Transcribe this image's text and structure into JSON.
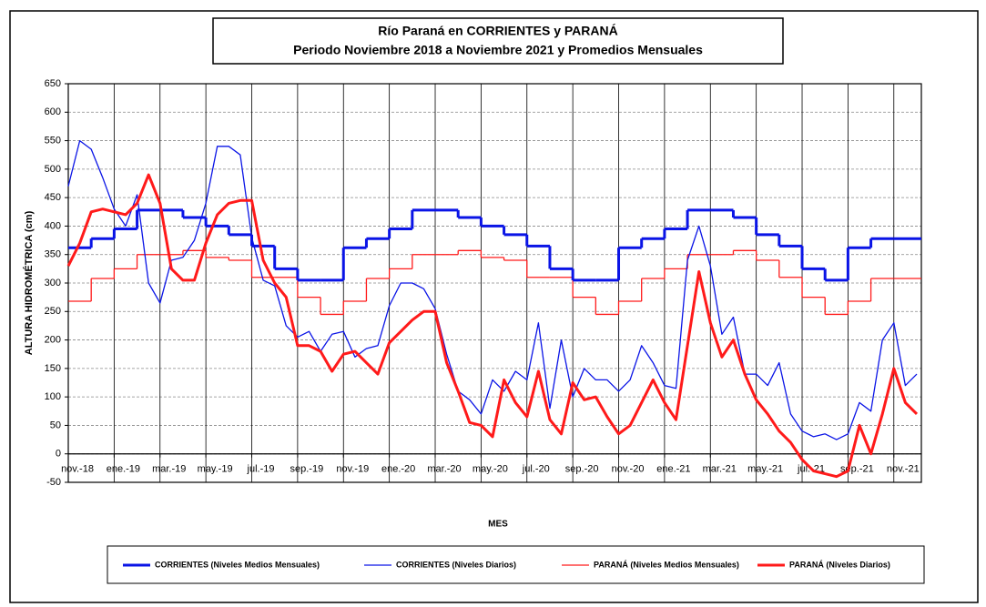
{
  "chart_data": {
    "type": "line",
    "title": "Río Paraná en CORRIENTES y PARANÁ",
    "subtitle": "Periodo Noviembre 2018 a Noviembre 2021 y Promedios Mensuales",
    "y_label": "ALTURA  HIDROMÉTRICA  (cm)",
    "x_label": "MES",
    "xlim": [
      0,
      37.2
    ],
    "ylim": [
      -50,
      650
    ],
    "yticks": [
      -50,
      0,
      50,
      100,
      150,
      200,
      250,
      300,
      350,
      400,
      450,
      500,
      550,
      600,
      650
    ],
    "xticks": [
      {
        "value": 0,
        "label": "nov.-18"
      },
      {
        "value": 2,
        "label": "ene.-19"
      },
      {
        "value": 4,
        "label": "mar.-19"
      },
      {
        "value": 6,
        "label": "may.-19"
      },
      {
        "value": 8,
        "label": "jul.-19"
      },
      {
        "value": 10,
        "label": "sep.-19"
      },
      {
        "value": 12,
        "label": "nov.-19"
      },
      {
        "value": 14,
        "label": "ene.-20"
      },
      {
        "value": 16,
        "label": "mar.-20"
      },
      {
        "value": 18,
        "label": "may.-20"
      },
      {
        "value": 20,
        "label": "jul.-20"
      },
      {
        "value": 22,
        "label": "sep.-20"
      },
      {
        "value": 24,
        "label": "nov.-20"
      },
      {
        "value": 26,
        "label": "ene.-21"
      },
      {
        "value": 28,
        "label": "mar.-21"
      },
      {
        "value": 30,
        "label": "may.-21"
      },
      {
        "value": 32,
        "label": "jul.-21"
      },
      {
        "value": 34,
        "label": "sep.-21"
      },
      {
        "value": 36,
        "label": "nov.-21"
      }
    ],
    "grid": true,
    "series": [
      {
        "name": "CORRIENTES (Niveles Medios Mensuales)",
        "color": "#0a14e6",
        "line_width": 3,
        "style": "step",
        "x": [
          0,
          1,
          2,
          3,
          4,
          5,
          6,
          7,
          8,
          9,
          10,
          11,
          12,
          13,
          14,
          15,
          16,
          17,
          18,
          19,
          20,
          21,
          22,
          23,
          24,
          25,
          26,
          27,
          28,
          29,
          30,
          31,
          32,
          33,
          34,
          35,
          36
        ],
        "values": [
          362,
          378,
          395,
          428,
          428,
          415,
          400,
          385,
          365,
          325,
          305,
          305,
          362,
          378,
          395,
          428,
          428,
          415,
          400,
          385,
          365,
          325,
          305,
          305,
          362,
          378,
          395,
          428,
          428,
          415,
          385,
          365,
          325,
          305,
          362,
          378,
          378
        ]
      },
      {
        "name": "CORRIENTES (Niveles Diarios)",
        "color": "#0a14e6",
        "line_width": 1.3,
        "style": "line",
        "x": [
          0,
          0.5,
          1,
          1.5,
          2,
          2.5,
          3,
          3.5,
          4,
          4.5,
          5,
          5.5,
          6,
          6.5,
          7,
          7.5,
          8,
          8.5,
          9,
          9.5,
          10,
          10.5,
          11,
          11.5,
          12,
          12.5,
          13,
          13.5,
          14,
          14.5,
          15,
          15.5,
          16,
          16.5,
          17,
          17.5,
          18,
          18.5,
          19,
          19.5,
          20,
          20.5,
          21,
          21.5,
          22,
          22.5,
          23,
          23.5,
          24,
          24.5,
          25,
          25.5,
          26,
          26.5,
          27,
          27.5,
          28,
          28.5,
          29,
          29.5,
          30,
          30.5,
          31,
          31.5,
          32,
          32.5,
          33,
          33.5,
          34,
          34.5,
          35,
          35.5,
          36,
          36.5,
          37
        ],
        "values": [
          470,
          550,
          535,
          485,
          430,
          400,
          455,
          300,
          265,
          340,
          345,
          375,
          440,
          540,
          540,
          525,
          380,
          305,
          295,
          225,
          205,
          215,
          180,
          210,
          215,
          170,
          185,
          190,
          260,
          300,
          300,
          290,
          255,
          175,
          110,
          95,
          70,
          130,
          110,
          145,
          130,
          230,
          80,
          200,
          100,
          150,
          130,
          130,
          110,
          130,
          190,
          160,
          120,
          115,
          340,
          400,
          330,
          210,
          240,
          140,
          140,
          120,
          160,
          70,
          40,
          30,
          35,
          25,
          35,
          90,
          75,
          200,
          230,
          120,
          140
        ]
      },
      {
        "name": "PARANÁ (Niveles Medios Mensuales)",
        "color": "#ff1a1a",
        "line_width": 1.3,
        "style": "step",
        "x": [
          0,
          1,
          2,
          3,
          4,
          5,
          6,
          7,
          8,
          9,
          10,
          11,
          12,
          13,
          14,
          15,
          16,
          17,
          18,
          19,
          20,
          21,
          22,
          23,
          24,
          25,
          26,
          27,
          28,
          29,
          30,
          31,
          32,
          33,
          34,
          35,
          36
        ],
        "values": [
          268,
          308,
          325,
          350,
          350,
          357,
          345,
          340,
          310,
          310,
          275,
          245,
          268,
          308,
          325,
          350,
          350,
          357,
          345,
          340,
          310,
          310,
          275,
          245,
          268,
          308,
          325,
          350,
          350,
          357,
          340,
          310,
          275,
          245,
          268,
          308,
          308
        ]
      },
      {
        "name": "PARANÁ (Niveles Diarios)",
        "color": "#ff1a1a",
        "line_width": 3,
        "style": "line",
        "x": [
          0,
          0.5,
          1,
          1.5,
          2,
          2.5,
          3,
          3.5,
          4,
          4.5,
          5,
          5.5,
          6,
          6.5,
          7,
          7.5,
          8,
          8.5,
          9,
          9.5,
          10,
          10.5,
          11,
          11.5,
          12,
          12.5,
          13,
          13.5,
          14,
          14.5,
          15,
          15.5,
          16,
          16.5,
          17,
          17.5,
          18,
          18.5,
          19,
          19.5,
          20,
          20.5,
          21,
          21.5,
          22,
          22.5,
          23,
          23.5,
          24,
          24.5,
          25,
          25.5,
          26,
          26.5,
          27,
          27.5,
          28,
          28.5,
          29,
          29.5,
          30,
          30.5,
          31,
          31.5,
          32,
          32.5,
          33,
          33.5,
          34,
          34.5,
          35,
          35.5,
          36,
          36.5,
          37
        ],
        "values": [
          330,
          370,
          425,
          430,
          425,
          420,
          440,
          490,
          440,
          325,
          305,
          305,
          370,
          420,
          440,
          445,
          445,
          340,
          300,
          275,
          190,
          190,
          180,
          145,
          175,
          180,
          160,
          140,
          195,
          215,
          235,
          250,
          250,
          160,
          110,
          55,
          50,
          30,
          130,
          90,
          65,
          145,
          60,
          35,
          125,
          95,
          100,
          65,
          35,
          50,
          90,
          130,
          90,
          60,
          190,
          320,
          230,
          170,
          200,
          140,
          95,
          70,
          40,
          20,
          -10,
          -30,
          -35,
          -40,
          -30,
          50,
          0,
          70,
          150,
          90,
          70
        ]
      }
    ]
  }
}
